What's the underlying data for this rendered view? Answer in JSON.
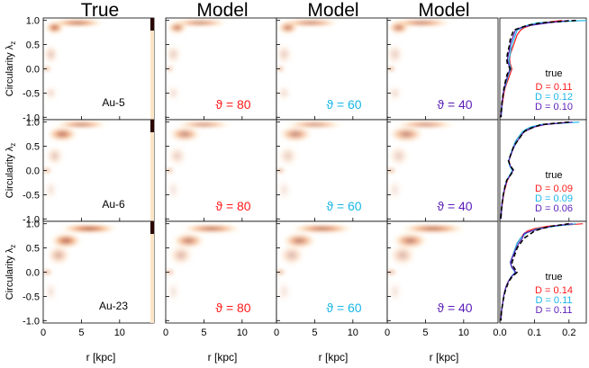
{
  "chart_data": {
    "type": "heatmap",
    "column_titles": [
      "True",
      "Model",
      "Model",
      "Model"
    ],
    "ylabel": "Circularity λ",
    "ylabel_sub": "z",
    "xlabel": "r [kpc]",
    "r_range": [
      0,
      14.5
    ],
    "circ_range": [
      -1.05,
      1.05
    ],
    "x_ticks": [
      0,
      5,
      10
    ],
    "y_ticks": [
      1.0,
      0.5,
      0.0,
      -0.5,
      -1.0
    ],
    "y_tick_labels": [
      "1.0",
      "0.5",
      "0.0",
      "-0.5",
      "-1.0"
    ],
    "dist_x_range": [
      0,
      0.25
    ],
    "dist_x_ticks": [
      0.0,
      0.1,
      0.2
    ],
    "dist_x_tick_labels": [
      "0.0",
      "0.1",
      "0.2"
    ],
    "legend_title": "true",
    "theta_labels": [
      "ϑ = 80",
      "ϑ = 60",
      "ϑ = 40"
    ],
    "theta_colors": [
      "#ff1a1a",
      "#19b6e8",
      "#5a1db8"
    ],
    "rows": [
      {
        "galaxy": "Au-5",
        "D_values": [
          "D = 0.11",
          "D = 0.12",
          "D = 0.10"
        ],
        "blobs": [
          {
            "r": 4.5,
            "c": 0.95,
            "sr": 3.5,
            "sc": 0.06,
            "a": 0.9
          },
          {
            "r": 1.5,
            "c": 0.85,
            "sr": 1.2,
            "sc": 0.12,
            "a": 0.7
          },
          {
            "r": 0.5,
            "c": 0.0,
            "sr": 0.5,
            "sc": 0.05,
            "a": 0.75
          },
          {
            "r": 1.0,
            "c": 0.3,
            "sr": 1.0,
            "sc": 0.2,
            "a": 0.25
          },
          {
            "r": 1.0,
            "c": -0.5,
            "sr": 0.8,
            "sc": 0.15,
            "a": 0.2
          }
        ],
        "dist": {
          "c": [
            1.0,
            0.95,
            0.9,
            0.85,
            0.8,
            0.7,
            0.6,
            0.5,
            0.4,
            0.3,
            0.2,
            0.1,
            0.0,
            -0.1,
            -0.2,
            -0.3,
            -0.4,
            -0.5,
            -0.6,
            -0.7,
            -0.8,
            -0.9,
            -1.0
          ],
          "true": [
            0.22,
            0.12,
            0.08,
            0.06,
            0.04,
            0.035,
            0.03,
            0.028,
            0.025,
            0.022,
            0.02,
            0.022,
            0.03,
            0.022,
            0.018,
            0.015,
            0.012,
            0.01,
            0.008,
            0.006,
            0.005,
            0.004,
            0.003
          ],
          "models": [
            [
              0.18,
              0.12,
              0.09,
              0.07,
              0.06,
              0.05,
              0.045,
              0.04,
              0.035,
              0.03,
              0.028,
              0.03,
              0.035,
              0.03,
              0.025,
              0.02,
              0.015,
              0.012,
              0.01,
              0.008,
              0.006,
              0.005,
              0.004
            ],
            [
              0.25,
              0.11,
              0.08,
              0.065,
              0.05,
              0.045,
              0.04,
              0.035,
              0.032,
              0.03,
              0.026,
              0.028,
              0.032,
              0.026,
              0.022,
              0.018,
              0.014,
              0.01,
              0.008,
              0.007,
              0.006,
              0.005,
              0.004
            ],
            [
              0.2,
              0.14,
              0.09,
              0.06,
              0.045,
              0.04,
              0.035,
              0.03,
              0.028,
              0.025,
              0.022,
              0.025,
              0.03,
              0.024,
              0.02,
              0.016,
              0.013,
              0.01,
              0.008,
              0.006,
              0.005,
              0.004,
              0.003
            ]
          ]
        }
      },
      {
        "galaxy": "Au-6",
        "D_values": [
          "D = 0.09",
          "D = 0.09",
          "D = 0.06"
        ],
        "blobs": [
          {
            "r": 5.0,
            "c": 0.95,
            "sr": 3.5,
            "sc": 0.06,
            "a": 0.8
          },
          {
            "r": 2.5,
            "c": 0.75,
            "sr": 2.0,
            "sc": 0.15,
            "a": 0.6
          },
          {
            "r": 0.5,
            "c": 0.0,
            "sr": 0.6,
            "sc": 0.05,
            "a": 0.7
          },
          {
            "r": 1.5,
            "c": 0.3,
            "sr": 1.2,
            "sc": 0.2,
            "a": 0.25
          },
          {
            "r": 1.0,
            "c": -0.4,
            "sr": 0.8,
            "sc": 0.2,
            "a": 0.15
          }
        ],
        "dist": {
          "c": [
            1.0,
            0.95,
            0.9,
            0.85,
            0.8,
            0.7,
            0.6,
            0.5,
            0.4,
            0.3,
            0.2,
            0.1,
            0.0,
            -0.1,
            -0.2,
            -0.3,
            -0.4,
            -0.5,
            -0.6,
            -0.7,
            -0.8,
            -0.9,
            -1.0
          ],
          "true": [
            0.2,
            0.12,
            0.1,
            0.08,
            0.07,
            0.06,
            0.05,
            0.04,
            0.035,
            0.03,
            0.025,
            0.03,
            0.04,
            0.03,
            0.02,
            0.016,
            0.013,
            0.01,
            0.008,
            0.006,
            0.005,
            0.004,
            0.003
          ],
          "models": [
            [
              0.2,
              0.13,
              0.1,
              0.08,
              0.07,
              0.055,
              0.045,
              0.04,
              0.035,
              0.03,
              0.026,
              0.03,
              0.038,
              0.03,
              0.022,
              0.018,
              0.014,
              0.011,
              0.009,
              0.007,
              0.005,
              0.004,
              0.003
            ],
            [
              0.23,
              0.12,
              0.09,
              0.075,
              0.065,
              0.055,
              0.045,
              0.04,
              0.034,
              0.03,
              0.025,
              0.028,
              0.036,
              0.028,
              0.02,
              0.016,
              0.013,
              0.01,
              0.008,
              0.006,
              0.005,
              0.004,
              0.003
            ],
            [
              0.21,
              0.13,
              0.1,
              0.085,
              0.07,
              0.06,
              0.05,
              0.042,
              0.036,
              0.031,
              0.026,
              0.03,
              0.038,
              0.03,
              0.021,
              0.017,
              0.013,
              0.01,
              0.008,
              0.006,
              0.005,
              0.004,
              0.003
            ]
          ]
        }
      },
      {
        "galaxy": "Au-23",
        "D_values": [
          "D = 0.14",
          "D = 0.11",
          "D = 0.11"
        ],
        "blobs": [
          {
            "r": 6.0,
            "c": 0.9,
            "sr": 3.8,
            "sc": 0.08,
            "a": 0.85
          },
          {
            "r": 3.0,
            "c": 0.65,
            "sr": 2.0,
            "sc": 0.15,
            "a": 0.65
          },
          {
            "r": 0.5,
            "c": 0.0,
            "sr": 0.7,
            "sc": 0.05,
            "a": 0.7
          },
          {
            "r": 2.0,
            "c": 0.35,
            "sr": 1.5,
            "sc": 0.2,
            "a": 0.35
          },
          {
            "r": 1.0,
            "c": -0.4,
            "sr": 0.8,
            "sc": 0.2,
            "a": 0.15
          }
        ],
        "dist": {
          "c": [
            1.0,
            0.95,
            0.9,
            0.85,
            0.8,
            0.7,
            0.6,
            0.5,
            0.4,
            0.3,
            0.2,
            0.1,
            0.0,
            -0.1,
            -0.2,
            -0.3,
            -0.4,
            -0.5,
            -0.6,
            -0.7,
            -0.8,
            -0.9,
            -1.0
          ],
          "true": [
            0.2,
            0.15,
            0.12,
            0.1,
            0.09,
            0.07,
            0.06,
            0.05,
            0.045,
            0.04,
            0.035,
            0.04,
            0.05,
            0.035,
            0.025,
            0.02,
            0.015,
            0.012,
            0.009,
            0.007,
            0.005,
            0.004,
            0.003
          ],
          "models": [
            [
              0.24,
              0.14,
              0.1,
              0.08,
              0.07,
              0.06,
              0.05,
              0.045,
              0.04,
              0.035,
              0.03,
              0.035,
              0.045,
              0.032,
              0.024,
              0.018,
              0.014,
              0.011,
              0.009,
              0.007,
              0.005,
              0.004,
              0.003
            ],
            [
              0.22,
              0.16,
              0.11,
              0.09,
              0.075,
              0.06,
              0.05,
              0.045,
              0.04,
              0.035,
              0.03,
              0.034,
              0.044,
              0.032,
              0.024,
              0.018,
              0.014,
              0.011,
              0.009,
              0.007,
              0.005,
              0.004,
              0.003
            ],
            [
              0.21,
              0.15,
              0.12,
              0.09,
              0.07,
              0.065,
              0.055,
              0.048,
              0.042,
              0.036,
              0.031,
              0.035,
              0.046,
              0.033,
              0.024,
              0.018,
              0.014,
              0.011,
              0.009,
              0.007,
              0.005,
              0.004,
              0.003
            ]
          ]
        }
      }
    ]
  }
}
